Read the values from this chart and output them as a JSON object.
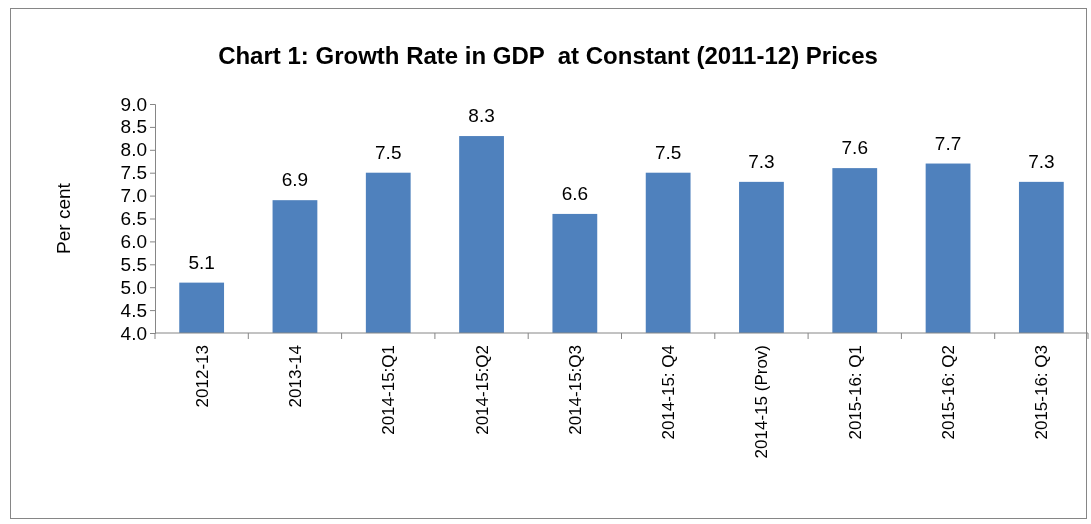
{
  "chart_data": {
    "type": "bar",
    "title": "Chart 1: Growth Rate in GDP  at Constant (2011-12) Prices",
    "ylabel": "Per cent",
    "categories": [
      "2012-13",
      "2013-14",
      "2014-15:Q1",
      "2014-15:Q2",
      "2014-15:Q3",
      "2014-15: Q4",
      "2014-15 (Prov)",
      "2015-16: Q1",
      "2015-16: Q2",
      "2015-16: Q3"
    ],
    "values": [
      5.1,
      6.9,
      7.5,
      8.3,
      6.6,
      7.5,
      7.3,
      7.6,
      7.7,
      7.3
    ],
    "color": "#4f81bd",
    "ylim": [
      4.0,
      9.0
    ],
    "yticks": [
      {
        "value": 4,
        "label": "4.0"
      },
      {
        "value": 4.5,
        "label": "4.5"
      },
      {
        "value": 5,
        "label": "5.0"
      },
      {
        "value": 5.5,
        "label": "5.5"
      },
      {
        "value": 6,
        "label": "6.0"
      },
      {
        "value": 6.5,
        "label": "6.5"
      },
      {
        "value": 7,
        "label": "7.0"
      },
      {
        "value": 7.5,
        "label": "7.5"
      },
      {
        "value": 8,
        "label": "8.0"
      },
      {
        "value": 8.5,
        "label": "8.5"
      },
      {
        "value": 9,
        "label": "9.0"
      }
    ],
    "data_labels": true
  }
}
